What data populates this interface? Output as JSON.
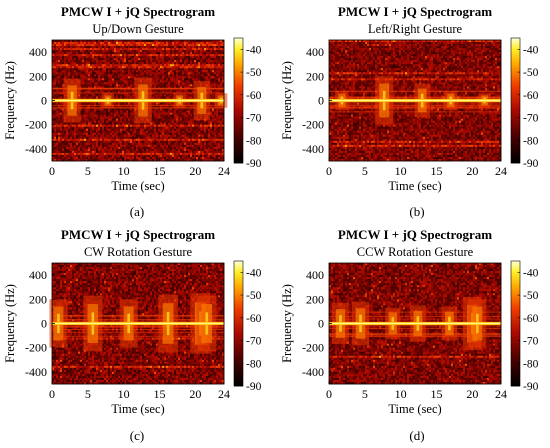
{
  "chart_data": [
    {
      "type": "heatmap",
      "panel_label": "(a)",
      "title": "PMCW I + jQ Spectrogram",
      "subtitle": "Up/Down Gesture",
      "xlabel": "Time (sec)",
      "ylabel": "Frequency (Hz)",
      "xlim": [
        0,
        24
      ],
      "ylim": [
        -500,
        500
      ],
      "xticks": [
        0,
        5,
        10,
        15,
        20,
        24
      ],
      "yticks": [
        400,
        200,
        0,
        -200,
        -400
      ],
      "colorbar": {
        "range": [
          -90,
          -35
        ],
        "ticks": [
          -40,
          -50,
          -60,
          -70,
          -80,
          -90
        ]
      },
      "gesture_events_sec": [
        2.8,
        7.8,
        12.7,
        17.8,
        20.9,
        23.6
      ],
      "burst_extent_hz": [
        180,
        60,
        190,
        60,
        160,
        60
      ],
      "steady_line_hz": 0
    },
    {
      "type": "heatmap",
      "panel_label": "(b)",
      "title": "PMCW I + jQ Spectrogram",
      "subtitle": "Left/Right Gesture",
      "xlabel": "Time (sec)",
      "ylabel": "Frequency (Hz)",
      "xlim": [
        0,
        24
      ],
      "ylim": [
        -500,
        500
      ],
      "xticks": [
        0,
        5,
        10,
        15,
        20,
        24
      ],
      "yticks": [
        400,
        200,
        0,
        -200,
        -400
      ],
      "colorbar": {
        "range": [
          -90,
          -35
        ],
        "ticks": [
          -40,
          -50,
          -60,
          -70,
          -80,
          -90
        ]
      },
      "gesture_events_sec": [
        1.8,
        7.7,
        13.0,
        17.0,
        21.7
      ],
      "burst_extent_hz": [
        80,
        200,
        140,
        80,
        60
      ],
      "steady_line_hz": 0
    },
    {
      "type": "heatmap",
      "panel_label": "(c)",
      "title": "PMCW I + jQ Spectrogram",
      "subtitle": "CW Rotation Gesture",
      "xlabel": "Time (sec)",
      "ylabel": "Frequency (Hz)",
      "xlim": [
        0,
        24
      ],
      "ylim": [
        -500,
        500
      ],
      "xticks": [
        0,
        5,
        10,
        15,
        20,
        24
      ],
      "yticks": [
        400,
        200,
        0,
        -200,
        -400
      ],
      "colorbar": {
        "range": [
          -90,
          -35
        ],
        "ticks": [
          -40,
          -50,
          -60,
          -70,
          -80,
          -90
        ]
      },
      "gesture_events_sec": [
        0.9,
        5.7,
        10.7,
        16.2,
        20.7,
        21.6
      ],
      "burst_extent_hz": [
        200,
        230,
        200,
        240,
        250,
        230
      ],
      "steady_line_hz": 0
    },
    {
      "type": "heatmap",
      "panel_label": "(d)",
      "title": "PMCW I + jQ Spectrogram",
      "subtitle": "CCW Rotation Gesture",
      "xlabel": "Time (sec)",
      "ylabel": "Frequency (Hz)",
      "xlim": [
        0,
        24
      ],
      "ylim": [
        -500,
        500
      ],
      "xticks": [
        0,
        5,
        10,
        15,
        20,
        24
      ],
      "yticks": [
        400,
        200,
        0,
        -200,
        -400
      ],
      "colorbar": {
        "range": [
          -90,
          -35
        ],
        "ticks": [
          -40,
          -50,
          -60,
          -70,
          -80,
          -90
        ]
      },
      "gesture_events_sec": [
        1.6,
        4.4,
        8.9,
        12.4,
        16.8,
        20.0,
        20.7
      ],
      "burst_extent_hz": [
        170,
        180,
        130,
        150,
        140,
        220,
        200
      ],
      "steady_line_hz": 0
    }
  ]
}
